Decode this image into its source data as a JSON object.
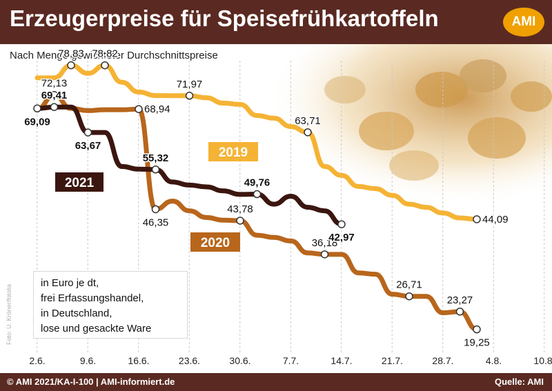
{
  "header": {
    "title": "Erzeugerpreise für Speisefrühkartoffeln",
    "logo": "AMI",
    "colors": {
      "bar": "#5a2a22",
      "logo": "#f0a000"
    }
  },
  "subtitle": "Nach Menge gewichteter Durchschnittspreise",
  "photo_credit": "Foto: U. Kröner/fotolia",
  "unit_note": [
    "in Euro je dt,",
    "frei Erfassungshandel,",
    "in Deutschland,",
    "lose und gesackte Ware"
  ],
  "footer": {
    "left": "© AMI 2021/KA-I-100 | AMI-informiert.de",
    "right": "Quelle: AMI"
  },
  "chart_data": {
    "type": "line",
    "x_ticks": [
      "2.6.",
      "9.6.",
      "16.6.",
      "23.6.",
      "30.6.",
      "7.7.",
      "14.7.",
      "21.7.",
      "28.7.",
      "4.8.",
      "10.8."
    ],
    "ylim": [
      15,
      85
    ],
    "grid": "vertical dashed",
    "series": [
      {
        "name": "2019",
        "color": "#f5b335",
        "points": [
          [
            0,
            76
          ],
          [
            1,
            76
          ],
          [
            2,
            78.83
          ],
          [
            3,
            77
          ],
          [
            4,
            78.82
          ],
          [
            5,
            75
          ],
          [
            6,
            72.8
          ],
          [
            7,
            72
          ],
          [
            8,
            71.97
          ],
          [
            9,
            71.97
          ],
          [
            10,
            71.5
          ],
          [
            11,
            70.3
          ],
          [
            12,
            70
          ],
          [
            13,
            67.5
          ],
          [
            14,
            66.9
          ],
          [
            15,
            65
          ],
          [
            16,
            63.71
          ],
          [
            17,
            56
          ],
          [
            18,
            54
          ],
          [
            19,
            51.5
          ],
          [
            20,
            51
          ],
          [
            21,
            49.5
          ],
          [
            22,
            47.5
          ],
          [
            23,
            46.8
          ],
          [
            24,
            45.5
          ],
          [
            25,
            44.4
          ],
          [
            26,
            44.09
          ]
        ],
        "labels": [
          {
            "value": "78,83",
            "i": 2,
            "pos": "above",
            "bold": false
          },
          {
            "value": "78,82",
            "i": 4,
            "pos": "above",
            "bold": false
          },
          {
            "value": "71,97",
            "i": 9,
            "pos": "above",
            "bold": false
          },
          {
            "value": "63,71",
            "i": 16,
            "pos": "above",
            "bold": false
          },
          {
            "value": "44,09",
            "i": 26,
            "pos": "right",
            "bold": false
          }
        ]
      },
      {
        "name": "2020",
        "color": "#b8661c",
        "points": [
          [
            0,
            69
          ],
          [
            1,
            72.13
          ],
          [
            2,
            69.1
          ],
          [
            3,
            68.6
          ],
          [
            4,
            68.8
          ],
          [
            5,
            68.8
          ],
          [
            6,
            68.94
          ],
          [
            7,
            46.35
          ],
          [
            8,
            48.2
          ],
          [
            9,
            46
          ],
          [
            10,
            44.5
          ],
          [
            11,
            43.9
          ],
          [
            12,
            43.78
          ],
          [
            13,
            40.5
          ],
          [
            14,
            40
          ],
          [
            15,
            39.2
          ],
          [
            16,
            36.5
          ],
          [
            17,
            36.18
          ],
          [
            18,
            36.18
          ],
          [
            19,
            32
          ],
          [
            20,
            31.7
          ],
          [
            21,
            27.2
          ],
          [
            22,
            26.71
          ],
          [
            23,
            26.71
          ],
          [
            24,
            23
          ],
          [
            25,
            23.27
          ],
          [
            26,
            19.25
          ]
        ],
        "labels": [
          {
            "value": "72,13",
            "i": 1,
            "pos": "above",
            "bold": false
          },
          {
            "value": "68,94",
            "i": 6,
            "pos": "right",
            "bold": false
          },
          {
            "value": "46,35",
            "i": 7,
            "pos": "below",
            "bold": false
          },
          {
            "value": "43,78",
            "i": 12,
            "pos": "above",
            "bold": false
          },
          {
            "value": "36,18",
            "i": 17,
            "pos": "above",
            "bold": false
          },
          {
            "value": "26,71",
            "i": 22,
            "pos": "above",
            "bold": false
          },
          {
            "value": "23,27",
            "i": 25,
            "pos": "above",
            "bold": false
          },
          {
            "value": "19,25",
            "i": 26,
            "pos": "below",
            "bold": false
          }
        ]
      },
      {
        "name": "2021",
        "color": "#3b160f",
        "points": [
          [
            0,
            69.09
          ],
          [
            1,
            69.41
          ],
          [
            2,
            69.41
          ],
          [
            3,
            63.67
          ],
          [
            4,
            63.67
          ],
          [
            5,
            56
          ],
          [
            6,
            55.4
          ],
          [
            7,
            55.32
          ],
          [
            8,
            52.5
          ],
          [
            9,
            51.8
          ],
          [
            10,
            51.4
          ],
          [
            11,
            50.5
          ],
          [
            12,
            49.7
          ],
          [
            13,
            49.76
          ],
          [
            14,
            47.5
          ],
          [
            15,
            49.3
          ],
          [
            16,
            46.8
          ],
          [
            17,
            46
          ],
          [
            18,
            42.97
          ]
        ],
        "labels": [
          {
            "value": "69,09",
            "i": 0,
            "pos": "below",
            "bold": true
          },
          {
            "value": "69,41",
            "i": 1,
            "pos": "above",
            "bold": true
          },
          {
            "value": "63,67",
            "i": 3,
            "pos": "below",
            "bold": true
          },
          {
            "value": "55,32",
            "i": 7,
            "pos": "above",
            "bold": true
          },
          {
            "value": "49,76",
            "i": 13,
            "pos": "above",
            "bold": true
          },
          {
            "value": "42,97",
            "i": 18,
            "pos": "below",
            "bold": true
          }
        ]
      }
    ]
  }
}
